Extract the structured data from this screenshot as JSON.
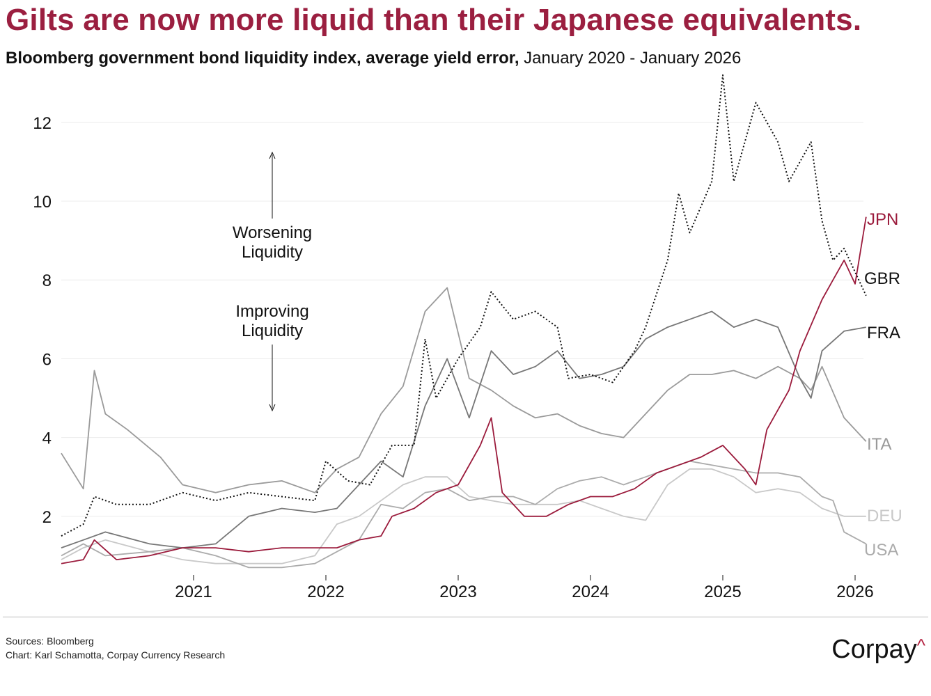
{
  "header": {
    "title": "Gilts are now more liquid than their Japanese equivalents.",
    "subtitle_bold": "Bloomberg government bond liquidity index, average yield error,",
    "subtitle_rest": " January 2020 - January 2026"
  },
  "footer": {
    "sources": "Sources: Bloomberg",
    "credit": "Chart: Karl Schamotta, Corpay Currency Research",
    "logo": "Corpay",
    "logo_mark": "^"
  },
  "chart_data": {
    "type": "line",
    "title": "Gilts are now more liquid than their Japanese equivalents.",
    "subtitle": "Bloomberg government bond liquidity index, average yield error, January 2020 - January 2026",
    "xlabel": "",
    "ylabel": "",
    "xlim": [
      "2020-01",
      "2026-02"
    ],
    "ylim": [
      0.6,
      13.2
    ],
    "x_ticks": [
      "2021",
      "2022",
      "2023",
      "2024",
      "2025",
      "2026"
    ],
    "y_ticks": [
      2,
      4,
      6,
      8,
      10,
      12
    ],
    "grid": "horizontal",
    "legend": "end-of-line labels, right",
    "annotations": [
      {
        "text": [
          "Worsening",
          "Liquidity"
        ],
        "arrow": "up"
      },
      {
        "text": [
          "Improving",
          "Liquidity"
        ],
        "arrow": "down"
      }
    ],
    "series": [
      {
        "name": "JPN",
        "color": "#9b1b3c",
        "style": "solid",
        "points": [
          [
            "2020-01",
            0.8
          ],
          [
            "2020-03",
            0.9
          ],
          [
            "2020-04",
            1.4
          ],
          [
            "2020-06",
            0.9
          ],
          [
            "2020-09",
            1.0
          ],
          [
            "2020-12",
            1.2
          ],
          [
            "2021-03",
            1.2
          ],
          [
            "2021-06",
            1.1
          ],
          [
            "2021-09",
            1.2
          ],
          [
            "2021-12",
            1.2
          ],
          [
            "2022-02",
            1.2
          ],
          [
            "2022-04",
            1.4
          ],
          [
            "2022-06",
            1.5
          ],
          [
            "2022-07",
            2.0
          ],
          [
            "2022-09",
            2.2
          ],
          [
            "2022-11",
            2.6
          ],
          [
            "2023-01",
            2.8
          ],
          [
            "2023-03",
            3.8
          ],
          [
            "2023-04",
            4.5
          ],
          [
            "2023-05",
            2.6
          ],
          [
            "2023-07",
            2.0
          ],
          [
            "2023-09",
            2.0
          ],
          [
            "2023-11",
            2.3
          ],
          [
            "2024-01",
            2.5
          ],
          [
            "2024-03",
            2.5
          ],
          [
            "2024-05",
            2.7
          ],
          [
            "2024-07",
            3.1
          ],
          [
            "2024-09",
            3.3
          ],
          [
            "2024-11",
            3.5
          ],
          [
            "2025-01",
            3.8
          ],
          [
            "2025-03",
            3.2
          ],
          [
            "2025-04",
            2.8
          ],
          [
            "2025-05",
            4.2
          ],
          [
            "2025-07",
            5.2
          ],
          [
            "2025-08",
            6.2
          ],
          [
            "2025-10",
            7.5
          ],
          [
            "2025-11",
            8.0
          ],
          [
            "2025-12",
            8.5
          ],
          [
            "2026-01",
            7.9
          ],
          [
            "2026-02",
            9.6
          ]
        ]
      },
      {
        "name": "GBR",
        "color": "#111111",
        "style": "dotted",
        "points": [
          [
            "2020-01",
            1.5
          ],
          [
            "2020-03",
            1.8
          ],
          [
            "2020-04",
            2.5
          ],
          [
            "2020-06",
            2.3
          ],
          [
            "2020-09",
            2.3
          ],
          [
            "2020-12",
            2.6
          ],
          [
            "2021-03",
            2.4
          ],
          [
            "2021-06",
            2.6
          ],
          [
            "2021-09",
            2.5
          ],
          [
            "2021-12",
            2.4
          ],
          [
            "2022-01",
            3.4
          ],
          [
            "2022-03",
            2.9
          ],
          [
            "2022-05",
            2.8
          ],
          [
            "2022-07",
            3.8
          ],
          [
            "2022-09",
            3.8
          ],
          [
            "2022-10",
            6.5
          ],
          [
            "2022-11",
            5.0
          ],
          [
            "2023-01",
            6.0
          ],
          [
            "2023-03",
            6.8
          ],
          [
            "2023-04",
            7.7
          ],
          [
            "2023-06",
            7.0
          ],
          [
            "2023-08",
            7.2
          ],
          [
            "2023-10",
            6.8
          ],
          [
            "2023-11",
            5.5
          ],
          [
            "2024-01",
            5.6
          ],
          [
            "2024-03",
            5.4
          ],
          [
            "2024-05",
            6.2
          ],
          [
            "2024-06",
            6.8
          ],
          [
            "2024-08",
            8.5
          ],
          [
            "2024-09",
            10.2
          ],
          [
            "2024-10",
            9.2
          ],
          [
            "2024-12",
            10.5
          ],
          [
            "2025-01",
            13.2
          ],
          [
            "2025-02",
            10.5
          ],
          [
            "2025-04",
            12.5
          ],
          [
            "2025-06",
            11.5
          ],
          [
            "2025-07",
            10.5
          ],
          [
            "2025-09",
            11.5
          ],
          [
            "2025-10",
            9.5
          ],
          [
            "2025-11",
            8.5
          ],
          [
            "2025-12",
            8.8
          ],
          [
            "2026-02",
            7.6
          ]
        ]
      },
      {
        "name": "FRA",
        "color": "#777777",
        "style": "solid",
        "points": [
          [
            "2020-01",
            1.2
          ],
          [
            "2020-03",
            1.4
          ],
          [
            "2020-05",
            1.6
          ],
          [
            "2020-09",
            1.3
          ],
          [
            "2020-12",
            1.2
          ],
          [
            "2021-03",
            1.3
          ],
          [
            "2021-06",
            2.0
          ],
          [
            "2021-09",
            2.2
          ],
          [
            "2021-12",
            2.1
          ],
          [
            "2022-02",
            2.2
          ],
          [
            "2022-04",
            2.8
          ],
          [
            "2022-06",
            3.4
          ],
          [
            "2022-08",
            3.0
          ],
          [
            "2022-10",
            4.8
          ],
          [
            "2022-12",
            6.0
          ],
          [
            "2023-02",
            4.5
          ],
          [
            "2023-04",
            6.2
          ],
          [
            "2023-06",
            5.6
          ],
          [
            "2023-08",
            5.8
          ],
          [
            "2023-10",
            6.2
          ],
          [
            "2023-12",
            5.5
          ],
          [
            "2024-02",
            5.6
          ],
          [
            "2024-04",
            5.8
          ],
          [
            "2024-06",
            6.5
          ],
          [
            "2024-08",
            6.8
          ],
          [
            "2024-10",
            7.0
          ],
          [
            "2024-12",
            7.2
          ],
          [
            "2025-02",
            6.8
          ],
          [
            "2025-04",
            7.0
          ],
          [
            "2025-06",
            6.8
          ],
          [
            "2025-08",
            5.5
          ],
          [
            "2025-09",
            5.0
          ],
          [
            "2025-10",
            6.2
          ],
          [
            "2025-12",
            6.7
          ],
          [
            "2026-02",
            6.8
          ]
        ]
      },
      {
        "name": "ITA",
        "color": "#9a9a9a",
        "style": "solid",
        "points": [
          [
            "2020-01",
            3.6
          ],
          [
            "2020-03",
            2.7
          ],
          [
            "2020-04",
            5.7
          ],
          [
            "2020-05",
            4.6
          ],
          [
            "2020-07",
            4.2
          ],
          [
            "2020-10",
            3.5
          ],
          [
            "2020-12",
            2.8
          ],
          [
            "2021-03",
            2.6
          ],
          [
            "2021-06",
            2.8
          ],
          [
            "2021-09",
            2.9
          ],
          [
            "2021-12",
            2.6
          ],
          [
            "2022-02",
            3.2
          ],
          [
            "2022-04",
            3.5
          ],
          [
            "2022-06",
            4.6
          ],
          [
            "2022-08",
            5.3
          ],
          [
            "2022-10",
            7.2
          ],
          [
            "2022-12",
            7.8
          ],
          [
            "2023-02",
            5.5
          ],
          [
            "2023-04",
            5.2
          ],
          [
            "2023-06",
            4.8
          ],
          [
            "2023-08",
            4.5
          ],
          [
            "2023-10",
            4.6
          ],
          [
            "2023-12",
            4.3
          ],
          [
            "2024-02",
            4.1
          ],
          [
            "2024-04",
            4.0
          ],
          [
            "2024-06",
            4.6
          ],
          [
            "2024-08",
            5.2
          ],
          [
            "2024-10",
            5.6
          ],
          [
            "2024-12",
            5.6
          ],
          [
            "2025-02",
            5.7
          ],
          [
            "2025-04",
            5.5
          ],
          [
            "2025-06",
            5.8
          ],
          [
            "2025-08",
            5.5
          ],
          [
            "2025-09",
            5.2
          ],
          [
            "2025-10",
            5.8
          ],
          [
            "2025-12",
            4.5
          ],
          [
            "2026-02",
            3.9
          ]
        ]
      },
      {
        "name": "DEU",
        "color": "#c8c8c8",
        "style": "solid",
        "points": [
          [
            "2020-01",
            0.9
          ],
          [
            "2020-03",
            1.2
          ],
          [
            "2020-05",
            1.4
          ],
          [
            "2020-09",
            1.1
          ],
          [
            "2020-12",
            0.9
          ],
          [
            "2021-03",
            0.8
          ],
          [
            "2021-06",
            0.8
          ],
          [
            "2021-09",
            0.8
          ],
          [
            "2021-12",
            1.0
          ],
          [
            "2022-02",
            1.8
          ],
          [
            "2022-04",
            2.0
          ],
          [
            "2022-06",
            2.4
          ],
          [
            "2022-08",
            2.8
          ],
          [
            "2022-10",
            3.0
          ],
          [
            "2022-12",
            3.0
          ],
          [
            "2023-02",
            2.5
          ],
          [
            "2023-04",
            2.4
          ],
          [
            "2023-06",
            2.3
          ],
          [
            "2023-08",
            2.3
          ],
          [
            "2023-10",
            2.3
          ],
          [
            "2023-12",
            2.4
          ],
          [
            "2024-02",
            2.2
          ],
          [
            "2024-04",
            2.0
          ],
          [
            "2024-06",
            1.9
          ],
          [
            "2024-08",
            2.8
          ],
          [
            "2024-10",
            3.2
          ],
          [
            "2024-12",
            3.2
          ],
          [
            "2025-02",
            3.0
          ],
          [
            "2025-04",
            2.6
          ],
          [
            "2025-06",
            2.7
          ],
          [
            "2025-08",
            2.6
          ],
          [
            "2025-10",
            2.2
          ],
          [
            "2025-12",
            2.0
          ],
          [
            "2026-02",
            2.0
          ]
        ]
      },
      {
        "name": "USA",
        "color": "#ababab",
        "style": "solid",
        "points": [
          [
            "2020-01",
            1.0
          ],
          [
            "2020-03",
            1.3
          ],
          [
            "2020-05",
            1.0
          ],
          [
            "2020-09",
            1.1
          ],
          [
            "2020-12",
            1.2
          ],
          [
            "2021-03",
            1.0
          ],
          [
            "2021-06",
            0.7
          ],
          [
            "2021-09",
            0.7
          ],
          [
            "2021-12",
            0.8
          ],
          [
            "2022-02",
            1.1
          ],
          [
            "2022-04",
            1.4
          ],
          [
            "2022-06",
            2.3
          ],
          [
            "2022-08",
            2.2
          ],
          [
            "2022-10",
            2.6
          ],
          [
            "2022-12",
            2.7
          ],
          [
            "2023-02",
            2.4
          ],
          [
            "2023-04",
            2.5
          ],
          [
            "2023-06",
            2.5
          ],
          [
            "2023-08",
            2.3
          ],
          [
            "2023-10",
            2.7
          ],
          [
            "2023-12",
            2.9
          ],
          [
            "2024-02",
            3.0
          ],
          [
            "2024-04",
            2.8
          ],
          [
            "2024-06",
            3.0
          ],
          [
            "2024-08",
            3.2
          ],
          [
            "2024-10",
            3.4
          ],
          [
            "2024-12",
            3.3
          ],
          [
            "2025-02",
            3.2
          ],
          [
            "2025-04",
            3.1
          ],
          [
            "2025-06",
            3.1
          ],
          [
            "2025-08",
            3.0
          ],
          [
            "2025-10",
            2.5
          ],
          [
            "2025-11",
            2.4
          ],
          [
            "2025-12",
            1.6
          ],
          [
            "2026-02",
            1.3
          ]
        ]
      }
    ]
  }
}
